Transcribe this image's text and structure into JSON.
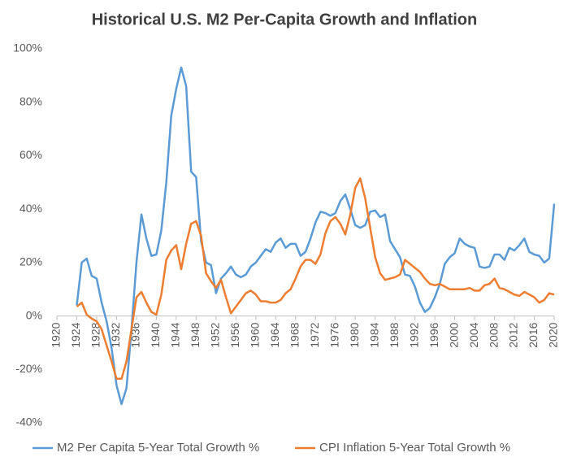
{
  "chart_data": {
    "type": "line",
    "title": "Historical U.S. M2 Per-Capita Growth and Inflation",
    "x": [
      1924,
      1925,
      1926,
      1927,
      1928,
      1929,
      1930,
      1931,
      1932,
      1933,
      1934,
      1935,
      1936,
      1937,
      1938,
      1939,
      1940,
      1941,
      1942,
      1943,
      1944,
      1945,
      1946,
      1947,
      1948,
      1949,
      1950,
      1951,
      1952,
      1953,
      1954,
      1955,
      1956,
      1957,
      1958,
      1959,
      1960,
      1961,
      1962,
      1963,
      1964,
      1965,
      1966,
      1967,
      1968,
      1969,
      1970,
      1971,
      1972,
      1973,
      1974,
      1975,
      1976,
      1977,
      1978,
      1979,
      1980,
      1981,
      1982,
      1983,
      1984,
      1985,
      1986,
      1987,
      1988,
      1989,
      1990,
      1991,
      1992,
      1993,
      1994,
      1995,
      1996,
      1997,
      1998,
      1999,
      2000,
      2001,
      2002,
      2003,
      2004,
      2005,
      2006,
      2007,
      2008,
      2009,
      2010,
      2011,
      2012,
      2013,
      2014,
      2015,
      2016,
      2017,
      2018,
      2019,
      2020
    ],
    "series": [
      {
        "name": "M2 Per Capita 5-Year Total Growth %",
        "color": "#5b9bd5",
        "values": [
          4,
          20,
          21.5,
          15,
          14,
          5,
          -2,
          -12,
          -26,
          -33,
          -27,
          -5,
          20,
          38,
          29,
          22.5,
          23,
          32,
          50,
          75,
          85,
          93,
          86,
          54,
          52,
          28,
          20,
          19,
          8.5,
          14,
          16,
          18.5,
          15.5,
          14.5,
          15.5,
          18.5,
          20,
          22.5,
          25,
          24,
          27.5,
          29,
          25.5,
          27,
          27,
          22.5,
          24,
          29,
          35,
          39,
          38.5,
          37.5,
          38.5,
          43,
          45.5,
          40,
          34,
          33,
          34,
          39,
          39.5,
          37,
          38,
          28,
          25,
          22,
          15.5,
          15,
          11,
          5,
          1.5,
          3,
          7,
          12,
          19.5,
          22,
          23.5,
          29,
          27,
          26,
          25.5,
          18.5,
          18,
          18.5,
          23,
          23,
          21,
          25.5,
          24.5,
          26.5,
          29,
          24,
          23,
          22.5,
          20,
          21.5,
          42
        ]
      },
      {
        "name": "CPI Inflation 5-Year Total Growth %",
        "color": "#ed7d31",
        "values": [
          3.5,
          5,
          0.5,
          -1,
          -2,
          -5,
          -11,
          -17,
          -23.5,
          -23.5,
          -17,
          -5,
          7,
          9,
          5,
          1.5,
          0.5,
          8,
          21,
          24.5,
          26.5,
          17.5,
          27,
          34.5,
          35.5,
          30,
          16,
          13,
          10.5,
          13.5,
          7,
          1,
          3.5,
          6,
          8.5,
          9.5,
          8,
          5.5,
          5.5,
          5,
          5,
          6,
          8.5,
          10,
          14,
          18.5,
          21,
          21,
          19.5,
          23,
          31,
          35.5,
          37,
          34.5,
          30.5,
          38,
          48,
          51.5,
          44,
          33,
          22,
          16,
          13.5,
          14,
          14.5,
          15.5,
          21,
          19.5,
          18,
          16.5,
          14,
          12,
          11.5,
          12,
          11,
          10,
          10,
          10,
          10,
          10.5,
          9.5,
          9.5,
          11.5,
          12,
          14,
          10.5,
          10,
          9,
          8,
          7.5,
          9,
          8,
          7,
          5,
          6,
          8.5,
          8
        ]
      }
    ],
    "xlim": [
      1920,
      2020
    ],
    "xticks": [
      1920,
      1924,
      1928,
      1932,
      1936,
      1940,
      1944,
      1948,
      1952,
      1956,
      1960,
      1964,
      1968,
      1972,
      1976,
      1980,
      1984,
      1988,
      1992,
      1996,
      2000,
      2004,
      2008,
      2012,
      2016,
      2020
    ],
    "ylim": [
      -40,
      100
    ],
    "yticks": [
      {
        "value": -40,
        "label": "-40%"
      },
      {
        "value": -20,
        "label": "-20%"
      },
      {
        "value": 0,
        "label": "0%"
      },
      {
        "value": 20,
        "label": "20%"
      },
      {
        "value": 40,
        "label": "40%"
      },
      {
        "value": 60,
        "label": "60%"
      },
      {
        "value": 80,
        "label": "80%"
      },
      {
        "value": 100,
        "label": "100%"
      }
    ],
    "grid": false
  }
}
